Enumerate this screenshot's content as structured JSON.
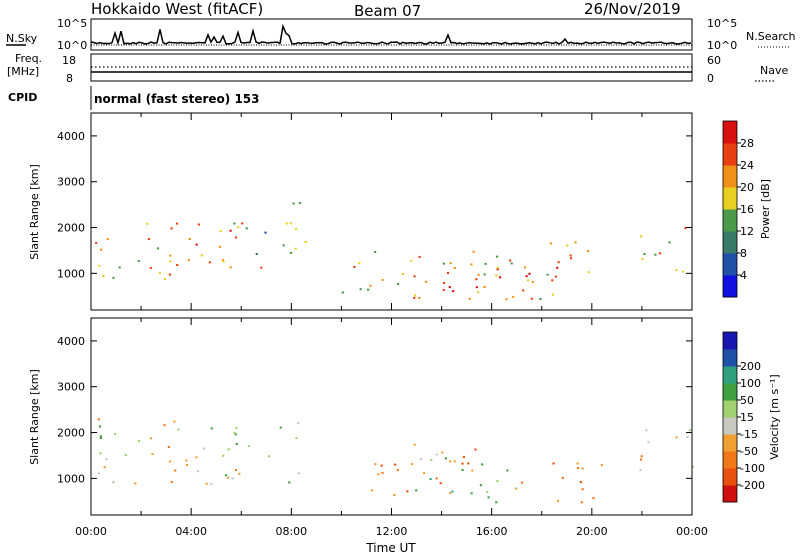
{
  "header": {
    "title": "Hokkaido West (fitACF)",
    "beam": "Beam 07",
    "date": "26/Nov/2019"
  },
  "top_panels": {
    "nsky": {
      "label": "N.Sky",
      "ticks": [
        "10^5",
        "10^0"
      ],
      "right_ticks": [
        "10^5",
        "10^0"
      ],
      "right_label": "N.Search"
    },
    "freq": {
      "label_line1": "Freq.",
      "label_line2": "[MHz]",
      "ticks": [
        "18",
        "8"
      ],
      "right_ticks": [
        "60",
        "0"
      ],
      "right_label": "Nave"
    },
    "cpid": {
      "label": "CPID",
      "text": "normal (fast stereo) 153"
    }
  },
  "colors": {
    "power": [
      "#1010e0",
      "#2050a8",
      "#3a7a6a",
      "#4a9a4a",
      "#e8d020",
      "#f09018",
      "#e84010",
      "#d81010"
    ],
    "velocity": [
      "#d01010",
      "#e85010",
      "#f07818",
      "#f0a030",
      "#c8c8c0",
      "#a0d070",
      "#40a040",
      "#30a080",
      "#2050a8",
      "#1818b0"
    ]
  },
  "chart_data": [
    {
      "type": "heatmap",
      "name": "power",
      "ylabel": "Slant Range [km]",
      "yticks": [
        "1000",
        "2000",
        "3000",
        "4000"
      ],
      "ylim": [
        200,
        4500
      ],
      "xlim": [
        0,
        24
      ],
      "colorbar": {
        "label": "Power [dB]",
        "ticks": [
          "4",
          "8",
          "12",
          "16",
          "20",
          "24",
          "28"
        ],
        "range": [
          0,
          32
        ]
      },
      "scatter_regions": [
        {
          "t0": 0,
          "t1": 6.8,
          "r0": 850,
          "r1": 2300,
          "level": 22
        },
        {
          "t0": 6.5,
          "t1": 8.6,
          "r0": 1300,
          "r1": 2700,
          "level": 12
        },
        {
          "t0": 10,
          "t1": 20,
          "r0": 450,
          "r1": 1700,
          "level": 20
        },
        {
          "t0": 13,
          "t1": 18.8,
          "r0": 450,
          "r1": 1200,
          "level": 27
        },
        {
          "t0": 21.8,
          "t1": 24,
          "r0": 1000,
          "r1": 2100,
          "level": 20
        }
      ]
    },
    {
      "type": "heatmap",
      "name": "velocity",
      "ylabel": "Slant Range [km]",
      "yticks": [
        "1000",
        "2000",
        "3000",
        "4000"
      ],
      "ylim": [
        200,
        4500
      ],
      "xlim": [
        0,
        24
      ],
      "xticks": [
        "00:00",
        "04:00",
        "08:00",
        "12:00",
        "16:00",
        "20:00",
        "00:00"
      ],
      "xlabel": "Time UT",
      "colorbar": {
        "label": "Velocity [m s⁻¹]",
        "ticks": [
          "-200",
          "-100",
          "-50",
          "-15",
          "15",
          "50",
          "100",
          "200"
        ]
      },
      "scatter_regions": [
        {
          "t0": 0,
          "t1": 8.5,
          "r0": 900,
          "r1": 2400,
          "velocity": 0
        },
        {
          "t0": 11,
          "t1": 15.5,
          "r0": 600,
          "r1": 1800,
          "velocity": -80
        },
        {
          "t0": 12.5,
          "t1": 17,
          "r0": 500,
          "r1": 1600,
          "velocity": 40
        },
        {
          "t0": 17,
          "t1": 20.5,
          "r0": 500,
          "r1": 1400,
          "velocity": -60
        },
        {
          "t0": 21.8,
          "t1": 24,
          "r0": 1000,
          "r1": 2100,
          "velocity": 0
        }
      ]
    }
  ]
}
